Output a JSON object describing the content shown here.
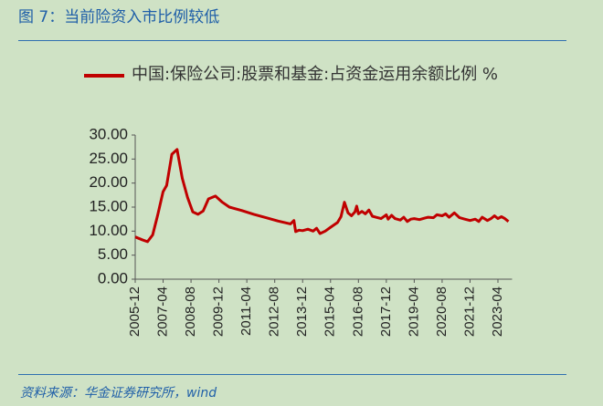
{
  "chart_data": {
    "type": "line",
    "title": "图 7：当前险资入市比例较低",
    "source": "资料来源：华金证券研究所，wind",
    "x": [
      "2005-12",
      "2006-04",
      "2006-07",
      "2006-10",
      "2007-01",
      "2007-04",
      "2007-06",
      "2007-09",
      "2007-12",
      "2008-03",
      "2008-06",
      "2008-09",
      "2008-12",
      "2009-03",
      "2009-06",
      "2009-10",
      "2010-02",
      "2010-06",
      "2011-01",
      "2011-08",
      "2012-03",
      "2012-10",
      "2013-05",
      "2013-07",
      "2013-08",
      "2013-10",
      "2013-12",
      "2014-03",
      "2014-06",
      "2014-08",
      "2014-10",
      "2015-01",
      "2015-04",
      "2015-08",
      "2015-10",
      "2015-12",
      "2016-02",
      "2016-04",
      "2016-06",
      "2016-07",
      "2016-08",
      "2016-10",
      "2016-12",
      "2017-02",
      "2017-04",
      "2017-06",
      "2017-09",
      "2017-12",
      "2018-01",
      "2018-03",
      "2018-05",
      "2018-08",
      "2018-10",
      "2018-12",
      "2019-02",
      "2019-04",
      "2019-07",
      "2019-10",
      "2019-12",
      "2020-03",
      "2020-05",
      "2020-08",
      "2020-10",
      "2020-12",
      "2021-03",
      "2021-06",
      "2021-09",
      "2021-12",
      "2022-03",
      "2022-05",
      "2022-07",
      "2022-10",
      "2022-12",
      "2023-02",
      "2023-04",
      "2023-06",
      "2023-08",
      "2023-10"
    ],
    "series": [
      {
        "name": "中国:保险公司:股票和基金:占资金运用余额比例 %",
        "color": "#c00000",
        "values": [
          8.8,
          8.2,
          7.8,
          9.2,
          13.5,
          18.2,
          19.5,
          26.0,
          27.0,
          21.0,
          17.0,
          14.0,
          13.5,
          14.2,
          16.7,
          17.3,
          16.0,
          15.0,
          14.3,
          13.5,
          12.8,
          12.1,
          11.5,
          12.2,
          9.9,
          10.2,
          10.1,
          10.4,
          10.0,
          10.6,
          9.5,
          10.0,
          10.8,
          11.8,
          13.0,
          16.0,
          13.8,
          13.2,
          14.0,
          15.2,
          13.6,
          14.1,
          13.6,
          14.4,
          13.1,
          12.9,
          12.6,
          13.4,
          12.5,
          13.3,
          12.6,
          12.3,
          12.9,
          12.0,
          12.5,
          12.6,
          12.4,
          12.7,
          12.9,
          12.8,
          13.4,
          13.2,
          13.6,
          12.9,
          13.8,
          12.8,
          12.5,
          12.2,
          12.5,
          12.0,
          12.9,
          12.2,
          12.6,
          13.2,
          12.6,
          13.0,
          12.6,
          12.0
        ]
      }
    ],
    "ylim": [
      0,
      30
    ],
    "yticks": [
      {
        "value": 0,
        "label": "0.00"
      },
      {
        "value": 5,
        "label": "5.00"
      },
      {
        "value": 10,
        "label": "10.00"
      },
      {
        "value": 15,
        "label": "15.00"
      },
      {
        "value": 20,
        "label": "20.00"
      },
      {
        "value": 25,
        "label": "25.00"
      },
      {
        "value": 30,
        "label": "30.00"
      }
    ],
    "xticks": [
      "2005-12",
      "2007-04",
      "2008-08",
      "2009-12",
      "2011-04",
      "2012-08",
      "2013-12",
      "2015-04",
      "2016-08",
      "2017-12",
      "2019-04",
      "2020-08",
      "2021-12",
      "2023-04"
    ]
  }
}
